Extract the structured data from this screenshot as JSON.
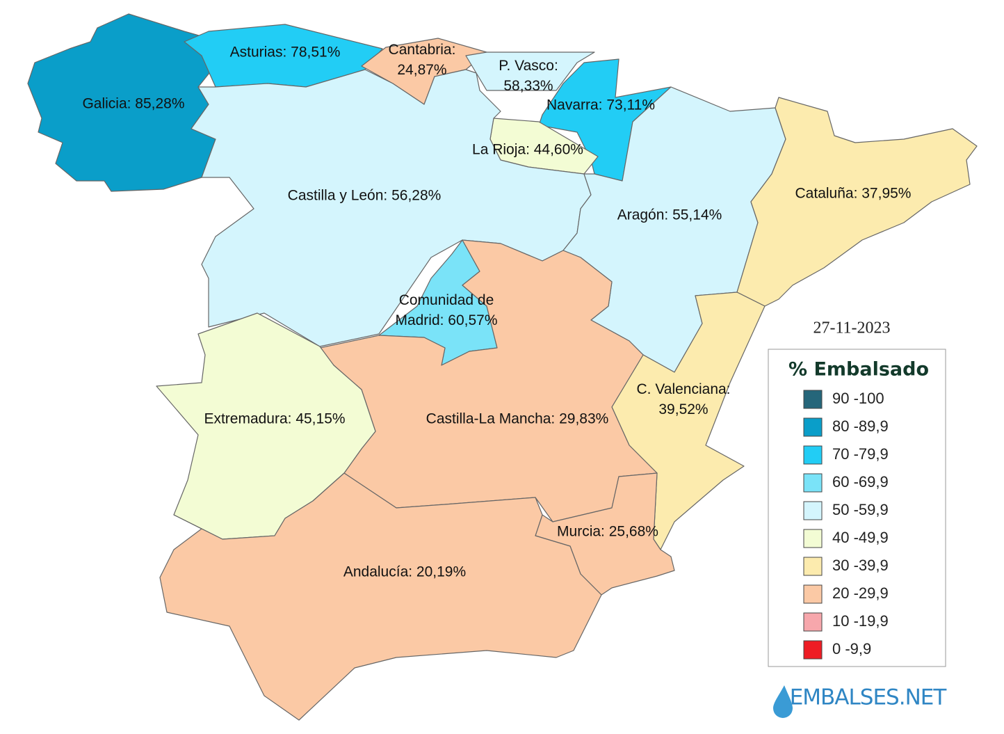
{
  "map": {
    "regions": [
      {
        "lines": [
          "Galicia: 85,28%"
        ],
        "color": "#0a9ec9"
      },
      {
        "lines": [
          "Asturias: 78,51%"
        ],
        "color": "#22cdf5"
      },
      {
        "lines": [
          "Cantabria:",
          "24,87%"
        ],
        "color": "#fbc9a5"
      },
      {
        "lines": [
          "P. Vasco:",
          "58,33%"
        ],
        "color": "#d4f5fd"
      },
      {
        "lines": [
          "Navarra: 73,11%"
        ],
        "color": "#22cdf5"
      },
      {
        "lines": [
          "La Rioja: 44,60%"
        ],
        "color": "#f3fcd4"
      },
      {
        "lines": [
          "Castilla y León: 56,28%"
        ],
        "color": "#d4f5fd"
      },
      {
        "lines": [
          "Aragón: 55,14%"
        ],
        "color": "#d4f5fd"
      },
      {
        "lines": [
          "Cataluña: 37,95%"
        ],
        "color": "#fcebae"
      },
      {
        "lines": [
          "Comunidad de",
          "Madrid: 60,57%"
        ],
        "color": "#7ae3f8"
      },
      {
        "lines": [
          "C. Valenciana:",
          "39,52%"
        ],
        "color": "#fcebae"
      },
      {
        "lines": [
          "Castilla-La Mancha: 29,83%"
        ],
        "color": "#fbc9a5"
      },
      {
        "lines": [
          "Extremadura: 45,15%"
        ],
        "color": "#f3fcd4"
      },
      {
        "lines": [
          "Murcia: 25,68%"
        ],
        "color": "#fbc9a5"
      },
      {
        "lines": [
          "Andalucía: 20,19%"
        ],
        "color": "#fbc9a5"
      }
    ],
    "date": "27-11-2023",
    "legend": {
      "title": "% Embalsado",
      "items": [
        {
          "color": "#25667a",
          "label": "90 -100"
        },
        {
          "color": "#0a9ec9",
          "label": "80 -89,9"
        },
        {
          "color": "#22cdf5",
          "label": "70 -79,9"
        },
        {
          "color": "#7ae3f8",
          "label": "60 -69,9"
        },
        {
          "color": "#d4f5fd",
          "label": "50 -59,9"
        },
        {
          "color": "#f3fcd4",
          "label": "40 -49,9"
        },
        {
          "color": "#fcebae",
          "label": "30 -39,9"
        },
        {
          "color": "#fbc9a5",
          "label": "20 -29,9"
        },
        {
          "color": "#f7a7ac",
          "label": "10 -19,9"
        },
        {
          "color": "#ee1c24",
          "label": "0 -9,9"
        }
      ]
    },
    "logo": "EMBALSES.NET"
  }
}
